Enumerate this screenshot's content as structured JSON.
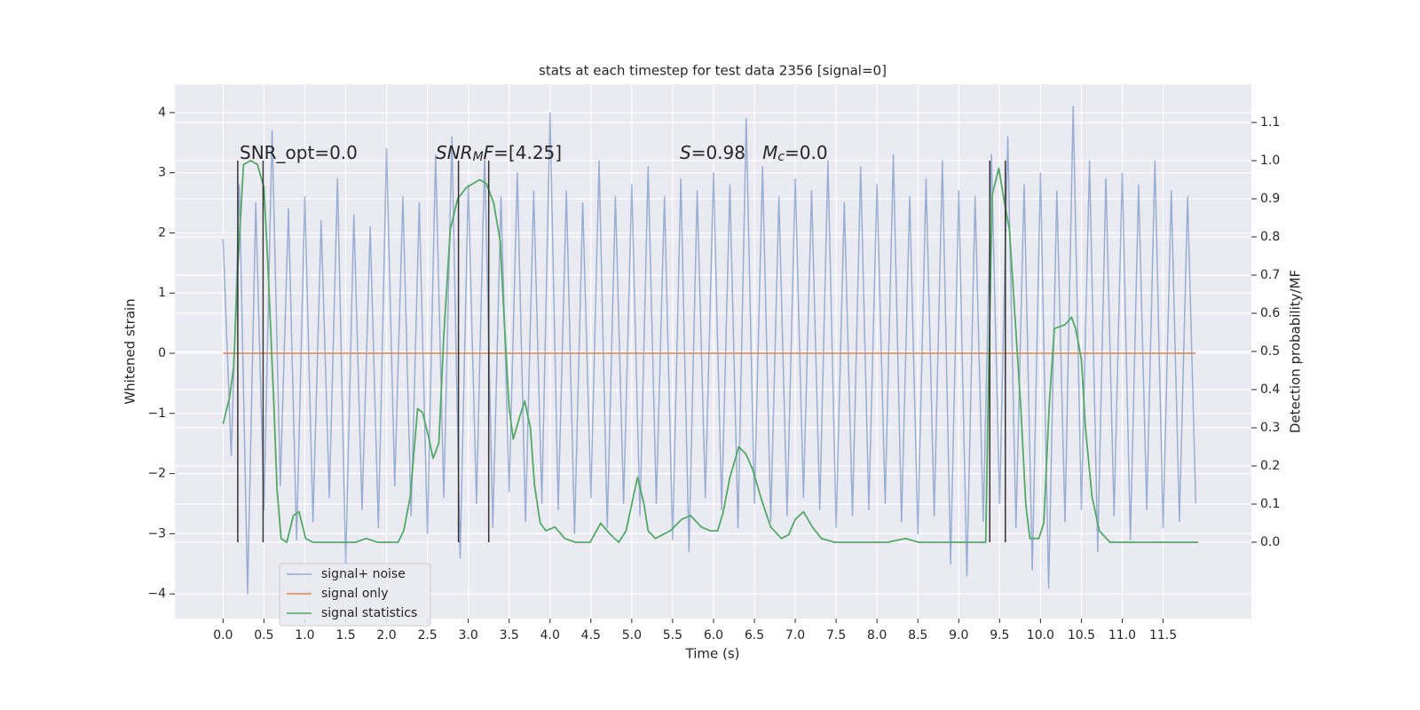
{
  "chart_data": {
    "type": "line",
    "title": "stats at each timestep for test data 2356 [signal=0]",
    "xlabel": "Time (s)",
    "ylabel": "Whitened strain",
    "y2label": "Detection probability/MF",
    "xlim": [
      -0.59,
      12.58
    ],
    "ylim": [
      -4.41,
      4.47
    ],
    "y2lim": [
      -0.2,
      1.2
    ],
    "xticks": [
      {
        "value": 0,
        "label": "0.0"
      },
      0.5,
      {
        "value": 1,
        "label": "1.0"
      },
      1.5,
      {
        "value": 2,
        "label": "2.0"
      },
      2.5,
      {
        "value": 3,
        "label": "3.0"
      },
      3.5,
      {
        "value": 4,
        "label": "4.0"
      },
      4.5,
      {
        "value": 5,
        "label": "5.0"
      },
      5.5,
      {
        "value": 6,
        "label": "6.0"
      },
      6.5,
      {
        "value": 7,
        "label": "7.0"
      },
      7.5,
      {
        "value": 8,
        "label": "8.0"
      },
      8.5,
      {
        "value": 9,
        "label": "9.0"
      },
      9.5,
      {
        "value": 10,
        "label": "10.0"
      },
      10.5,
      {
        "value": 11,
        "label": "11.0"
      },
      11.5
    ],
    "yticks": [
      {
        "value": -4,
        "label": "−4"
      },
      {
        "value": -3,
        "label": "−3"
      },
      {
        "value": -2,
        "label": "−2"
      },
      {
        "value": -1,
        "label": "−1"
      },
      0,
      1,
      2,
      3,
      4
    ],
    "y2ticks": [
      {
        "value": 0,
        "label": "0.0"
      },
      0.1,
      0.2,
      0.3,
      0.4,
      0.5,
      0.6,
      0.7,
      0.8,
      0.9,
      {
        "value": 1,
        "label": "1.0"
      },
      1.1
    ],
    "grid": true,
    "legend": "lower left",
    "x": [
      0.0,
      0.1,
      0.2,
      0.3,
      0.4,
      0.5,
      0.6,
      0.7,
      0.8,
      0.9,
      1.0,
      1.1,
      1.2,
      1.3,
      1.4,
      1.5,
      1.6,
      1.7,
      1.8,
      1.9,
      2.0,
      2.1,
      2.2,
      2.3,
      2.4,
      2.5,
      2.6,
      2.7,
      2.8,
      2.9,
      3.0,
      3.1,
      3.2,
      3.3,
      3.4,
      3.5,
      3.6,
      3.7,
      3.8,
      3.9,
      4.0,
      4.1,
      4.2,
      4.3,
      4.4,
      4.5,
      4.6,
      4.7,
      4.8,
      4.9,
      5.0,
      5.1,
      5.2,
      5.3,
      5.4,
      5.5,
      5.6,
      5.7,
      5.8,
      5.9,
      6.0,
      6.1,
      6.2,
      6.3,
      6.4,
      6.5,
      6.6,
      6.7,
      6.8,
      6.9,
      7.0,
      7.1,
      7.2,
      7.3,
      7.4,
      7.5,
      7.6,
      7.7,
      7.8,
      7.9,
      8.0,
      8.1,
      8.2,
      8.3,
      8.4,
      8.5,
      8.6,
      8.7,
      8.8,
      8.9,
      9.0,
      9.1,
      9.2,
      9.3,
      9.4,
      9.5,
      9.6,
      9.7,
      9.8,
      9.9,
      10.0,
      10.1,
      10.2,
      10.3,
      10.4,
      10.5,
      10.6,
      10.7,
      10.8,
      10.9,
      11.0,
      11.1,
      11.2,
      11.3,
      11.4,
      11.5,
      11.6,
      11.7,
      11.8,
      11.9
    ],
    "series": [
      {
        "name": "signal+ noise",
        "color": "#4c72b0",
        "values": [
          1.9,
          -1.7,
          2.8,
          -4.0,
          2.5,
          -2.6,
          3.7,
          -2.2,
          2.4,
          -3.1,
          2.6,
          -2.8,
          2.2,
          -2.4,
          2.9,
          -3.5,
          2.3,
          -2.6,
          2.1,
          -2.9,
          3.4,
          -2.2,
          2.6,
          -2.7,
          2.5,
          -3.0,
          3.3,
          -2.4,
          3.6,
          -3.4,
          2.8,
          -2.5,
          3.3,
          -2.9,
          2.6,
          -2.3,
          3.0,
          -2.8,
          2.7,
          -2.5,
          4.0,
          -2.6,
          2.7,
          -3.0,
          2.5,
          -2.4,
          3.2,
          -2.9,
          2.6,
          -2.5,
          2.8,
          -2.7,
          3.1,
          -2.5,
          2.6,
          -3.1,
          2.9,
          -3.3,
          2.7,
          -2.4,
          3.0,
          -2.6,
          2.8,
          -2.9,
          3.9,
          -2.5,
          3.1,
          -2.8,
          2.6,
          -2.7,
          2.9,
          -2.4,
          2.7,
          -2.6,
          3.2,
          -2.9,
          2.5,
          -2.7,
          3.1,
          -2.6,
          2.8,
          -2.5,
          3.3,
          -2.8,
          2.6,
          -3.0,
          2.9,
          -2.7,
          3.2,
          -3.5,
          2.7,
          -3.7,
          2.6,
          -2.8,
          3.3,
          -2.5,
          3.6,
          -2.9,
          2.8,
          -3.6,
          3.0,
          -3.9,
          2.7,
          -2.8,
          4.1,
          -2.6,
          3.2,
          -3.3,
          2.9,
          -2.7,
          3.0,
          -3.1,
          2.8,
          -2.6,
          3.2,
          -2.9,
          2.7,
          -2.8,
          2.6,
          -2.5
        ]
      },
      {
        "name": "signal only",
        "color": "#dd8452",
        "values": [
          0,
          0,
          0,
          0,
          0,
          0,
          0,
          0,
          0,
          0,
          0,
          0,
          0,
          0,
          0,
          0,
          0,
          0,
          0,
          0,
          0,
          0,
          0,
          0,
          0,
          0,
          0,
          0,
          0,
          0,
          0,
          0,
          0,
          0,
          0,
          0,
          0,
          0,
          0,
          0,
          0,
          0,
          0,
          0,
          0,
          0,
          0,
          0,
          0,
          0,
          0,
          0,
          0,
          0,
          0,
          0,
          0,
          0,
          0,
          0,
          0,
          0,
          0,
          0,
          0,
          0,
          0,
          0,
          0,
          0,
          0,
          0,
          0,
          0,
          0,
          0,
          0,
          0,
          0,
          0,
          0,
          0,
          0,
          0,
          0,
          0,
          0,
          0,
          0,
          0,
          0,
          0,
          0,
          0,
          0,
          0,
          0,
          0,
          0,
          0,
          0,
          0,
          0,
          0,
          0,
          0,
          0,
          0,
          0,
          0,
          0,
          0,
          0,
          0,
          0,
          0,
          0,
          0,
          0,
          0
        ]
      },
      {
        "name": "signal statistics",
        "color": "#55a868",
        "axis": "y2",
        "x": [
          0.0,
          0.08,
          0.13,
          0.18,
          0.25,
          0.34,
          0.42,
          0.5,
          0.55,
          0.62,
          0.66,
          0.71,
          0.78,
          0.86,
          0.93,
          1.01,
          1.1,
          1.62,
          1.75,
          1.89,
          2.14,
          2.21,
          2.29,
          2.38,
          2.44,
          2.51,
          2.57,
          2.64,
          2.7,
          2.78,
          2.87,
          2.98,
          3.14,
          3.22,
          3.31,
          3.39,
          3.44,
          3.5,
          3.55,
          3.63,
          3.69,
          3.76,
          3.81,
          3.88,
          3.95,
          4.06,
          4.18,
          4.31,
          4.49,
          4.62,
          4.74,
          4.84,
          4.93,
          5.01,
          5.07,
          5.15,
          5.2,
          5.29,
          5.47,
          5.61,
          5.72,
          5.85,
          5.96,
          6.05,
          6.12,
          6.2,
          6.31,
          6.4,
          6.48,
          6.59,
          6.7,
          6.83,
          6.92,
          7.0,
          7.1,
          7.21,
          7.32,
          7.48,
          7.97,
          8.13,
          8.35,
          8.51,
          9.27,
          9.33,
          9.37,
          9.41,
          9.49,
          9.56,
          9.62,
          9.76,
          9.82,
          9.87,
          9.98,
          10.04,
          10.11,
          10.17,
          10.3,
          10.38,
          10.43,
          10.5,
          10.55,
          10.63,
          10.72,
          10.85,
          11.06,
          11.28,
          11.6,
          11.82,
          11.93
        ],
        "values": [
          0.31,
          0.38,
          0.46,
          0.72,
          0.99,
          1.0,
          0.99,
          0.93,
          0.72,
          0.37,
          0.14,
          0.01,
          0.0,
          0.07,
          0.08,
          0.01,
          0.0,
          0.0,
          0.01,
          0.0,
          0.0,
          0.03,
          0.12,
          0.35,
          0.34,
          0.28,
          0.22,
          0.26,
          0.54,
          0.82,
          0.9,
          0.93,
          0.95,
          0.94,
          0.89,
          0.79,
          0.58,
          0.35,
          0.27,
          0.33,
          0.37,
          0.3,
          0.15,
          0.05,
          0.03,
          0.04,
          0.01,
          0.0,
          0.0,
          0.05,
          0.02,
          0.0,
          0.03,
          0.11,
          0.17,
          0.1,
          0.03,
          0.01,
          0.03,
          0.06,
          0.07,
          0.04,
          0.03,
          0.03,
          0.08,
          0.17,
          0.25,
          0.23,
          0.19,
          0.11,
          0.04,
          0.01,
          0.02,
          0.06,
          0.08,
          0.04,
          0.01,
          0.0,
          0.0,
          0.0,
          0.01,
          0.0,
          0.0,
          0.0,
          0.49,
          0.91,
          0.98,
          0.89,
          0.82,
          0.35,
          0.1,
          0.01,
          0.01,
          0.05,
          0.37,
          0.56,
          0.57,
          0.59,
          0.56,
          0.48,
          0.3,
          0.12,
          0.03,
          0.0,
          0.0,
          0.0,
          0.0,
          0.0,
          0.0
        ]
      }
    ],
    "vlines": {
      "x": [
        0.18,
        0.49,
        2.88,
        3.25,
        9.38,
        9.57
      ],
      "ymin": 0,
      "ymax": 1,
      "color": "#333333"
    },
    "annotations": [
      [
        {
          "text": "SNR_opt=0.0"
        }
      ],
      [
        {
          "text": "SNR",
          "italic": true
        },
        {
          "text": "M",
          "italic": true,
          "sub": true
        },
        {
          "text": "F",
          "italic": true
        },
        {
          "text": "=[4.25]"
        }
      ],
      [
        {
          "text": "S",
          "italic": true
        },
        {
          "text": "=0.98   "
        },
        {
          "text": "M",
          "italic": true
        },
        {
          "text": "c",
          "italic": true,
          "sub": true
        },
        {
          "text": "=0.0"
        }
      ]
    ]
  }
}
